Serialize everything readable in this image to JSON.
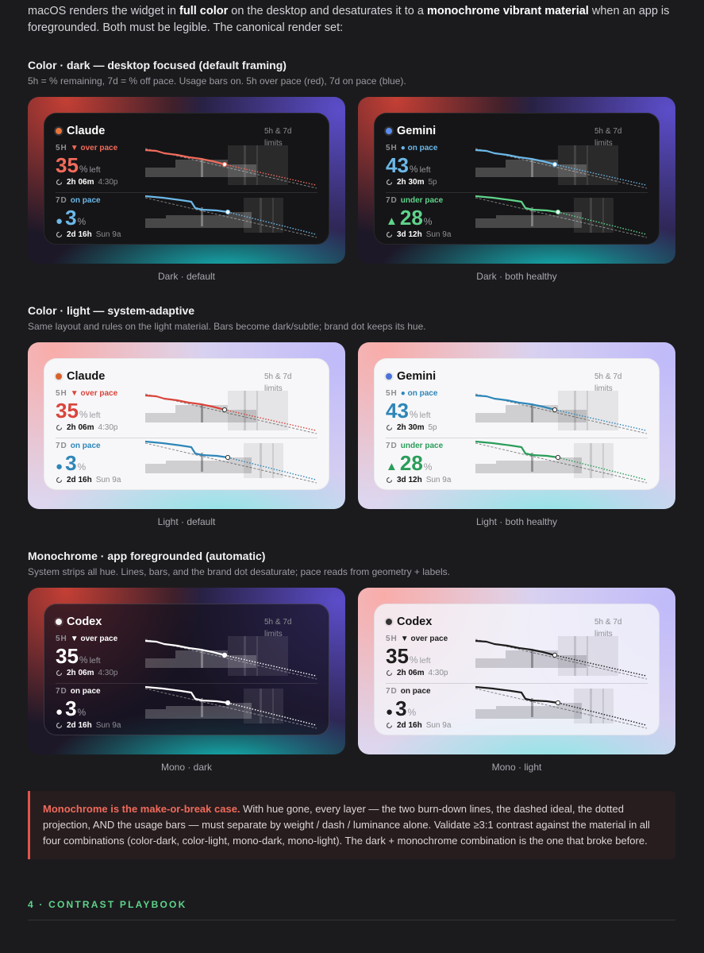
{
  "intro": {
    "before": "macOS renders the widget in ",
    "bold1": "full color",
    "middle": " on the desktop and desaturates it to a ",
    "bold2": "monochrome vibrant material",
    "after": " when an app is foregrounded. Both must be legible. The canonical render set:"
  },
  "sections": [
    {
      "title": "Color · dark — desktop focused (default framing)",
      "subtitle": "5h = % remaining, 7d = % off pace. Usage bars on. 5h over pace (red), 7d on pace (blue).",
      "cards": [
        {
          "caption": "Dark · default",
          "theme": "dark",
          "monochrome": false,
          "widget": {
            "name": "Claude",
            "brand_color": "#e8743b",
            "limits": "5h & 7d limits",
            "rows": [
              {
                "window": "5H",
                "status": "▼ over pace",
                "color": "#f26b5b",
                "lead": "",
                "value": "35",
                "unit": "%",
                "suffix": "left",
                "reset": "2h 06m",
                "at": "4:30p"
              },
              {
                "window": "7D",
                "status": "on pace",
                "color": "#6cb8e8",
                "lead": "●",
                "value": "3",
                "unit": "%",
                "suffix": "",
                "reset": "2d 16h",
                "at": "Sun 9a"
              }
            ]
          }
        },
        {
          "caption": "Dark · both healthy",
          "theme": "dark",
          "monochrome": false,
          "widget": {
            "name": "Gemini",
            "brand_color": "#5b8def",
            "limits": "5h & 7d limits",
            "rows": [
              {
                "window": "5H",
                "status": "● on pace",
                "color": "#6cb8e8",
                "lead": "",
                "value": "43",
                "unit": "%",
                "suffix": "left",
                "reset": "2h 30m",
                "at": "5p"
              },
              {
                "window": "7D",
                "status": "under pace",
                "color": "#5fd38a",
                "lead": "▲",
                "value": "28",
                "unit": "%",
                "suffix": "",
                "reset": "3d 12h",
                "at": "Sun 9a"
              }
            ]
          }
        }
      ]
    },
    {
      "title": "Color · light — system-adaptive",
      "subtitle": "Same layout and rules on the light material. Bars become dark/subtle; brand dot keeps its hue.",
      "cards": [
        {
          "caption": "Light · default",
          "theme": "light",
          "monochrome": false,
          "widget": {
            "name": "Claude",
            "brand_color": "#d9622b",
            "limits": "5h & 7d limits",
            "rows": [
              {
                "window": "5H",
                "status": "▼ over pace",
                "color": "#d9453b",
                "lead": "",
                "value": "35",
                "unit": "%",
                "suffix": "left",
                "reset": "2h 06m",
                "at": "4:30p"
              },
              {
                "window": "7D",
                "status": "on pace",
                "color": "#2e86b8",
                "lead": "●",
                "value": "3",
                "unit": "%",
                "suffix": "",
                "reset": "2d 16h",
                "at": "Sun 9a"
              }
            ]
          }
        },
        {
          "caption": "Light · both healthy",
          "theme": "light",
          "monochrome": false,
          "widget": {
            "name": "Gemini",
            "brand_color": "#4a72d9",
            "limits": "5h & 7d limits",
            "rows": [
              {
                "window": "5H",
                "status": "● on pace",
                "color": "#2e86b8",
                "lead": "",
                "value": "43",
                "unit": "%",
                "suffix": "left",
                "reset": "2h 30m",
                "at": "5p"
              },
              {
                "window": "7D",
                "status": "under pace",
                "color": "#2a9d5a",
                "lead": "▲",
                "value": "28",
                "unit": "%",
                "suffix": "",
                "reset": "3d 12h",
                "at": "Sun 9a"
              }
            ]
          }
        }
      ]
    },
    {
      "title": "Monochrome · app foregrounded (automatic)",
      "subtitle": "System strips all hue. Lines, bars, and the brand dot desaturate; pace reads from geometry + labels.",
      "cards": [
        {
          "caption": "Mono · dark",
          "theme": "dark",
          "monochrome": true,
          "widget": {
            "name": "Codex",
            "brand_color": "#f2f2f2",
            "limits": "5h & 7d limits",
            "rows": [
              {
                "window": "5H",
                "status": "▼ over pace",
                "color": "#ffffff",
                "lead": "",
                "value": "35",
                "unit": "%",
                "suffix": "left",
                "reset": "2h 06m",
                "at": "4:30p"
              },
              {
                "window": "7D",
                "status": "on pace",
                "color": "#ffffff",
                "lead": "●",
                "value": "3",
                "unit": "%",
                "suffix": "",
                "reset": "2d 16h",
                "at": "Sun 9a"
              }
            ]
          }
        },
        {
          "caption": "Mono · light",
          "theme": "light",
          "monochrome": true,
          "widget": {
            "name": "Codex",
            "brand_color": "#333333",
            "limits": "5h & 7d limits",
            "rows": [
              {
                "window": "5H",
                "status": "▼ over pace",
                "color": "#1e1e1e",
                "lead": "",
                "value": "35",
                "unit": "%",
                "suffix": "left",
                "reset": "2h 06m",
                "at": "4:30p"
              },
              {
                "window": "7D",
                "status": "on pace",
                "color": "#1e1e1e",
                "lead": "●",
                "value": "3",
                "unit": "%",
                "suffix": "",
                "reset": "2d 16h",
                "at": "Sun 9a"
              }
            ]
          }
        }
      ]
    }
  ],
  "callout": {
    "bold": "Monochrome is the make-or-break case.",
    "text": " With hue gone, every layer — the two burn-down lines, the dashed ideal, the dotted projection, AND the usage bars — must separate by weight / dash / luminance alone. Validate ≥3:1 contrast against the material in all four combinations (color-dark, color-light, mono-dark, mono-light). The dark + monochrome combination is the one that broke before."
  },
  "next_section": "4 · CONTRAST PLAYBOOK"
}
